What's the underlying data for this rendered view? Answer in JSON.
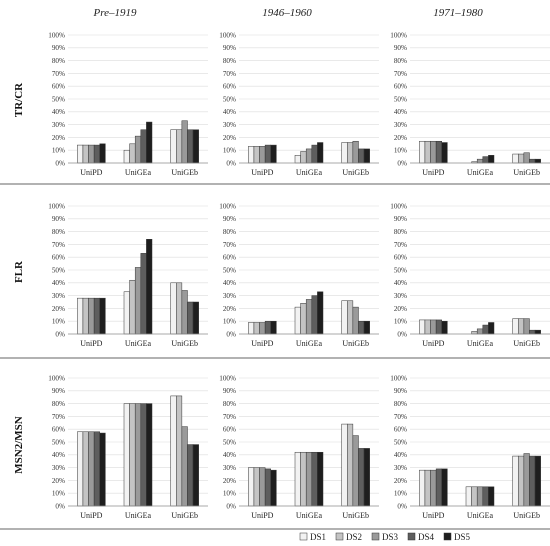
{
  "chart_data": {
    "type": "bar",
    "column_titles": [
      "Pre–1919",
      "1946–1960",
      "1971–1980"
    ],
    "row_titles": [
      "TR/CR",
      "FLR",
      "MSN2/MSN"
    ],
    "categories": [
      "UniPD",
      "UniGEa",
      "UniGEb"
    ],
    "series_names": [
      "DS1",
      "DS2",
      "DS3",
      "DS4",
      "DS5"
    ],
    "series_colors": [
      "#f2f2f2",
      "#c4c4c4",
      "#9a9a9a",
      "#5e5e5e",
      "#1e1e1e"
    ],
    "ylim": [
      0,
      100
    ],
    "yticks": [
      "0%",
      "10%",
      "20%",
      "30%",
      "40%",
      "50%",
      "60%",
      "70%",
      "80%",
      "90%",
      "100%"
    ],
    "legend_position": "bottom-right",
    "grid": true,
    "panels": [
      {
        "row": 0,
        "col": 0,
        "values": [
          [
            14,
            14,
            14,
            14,
            15
          ],
          [
            10,
            15,
            21,
            26,
            32
          ],
          [
            26,
            26,
            33,
            26,
            26
          ]
        ]
      },
      {
        "row": 0,
        "col": 1,
        "values": [
          [
            13,
            13,
            13,
            14,
            14
          ],
          [
            6,
            9,
            11,
            14,
            16
          ],
          [
            16,
            16,
            17,
            11,
            11
          ]
        ]
      },
      {
        "row": 0,
        "col": 2,
        "values": [
          [
            17,
            17,
            17,
            17,
            16
          ],
          [
            0,
            1,
            3,
            5,
            6
          ],
          [
            7,
            7,
            8,
            3,
            3
          ]
        ]
      },
      {
        "row": 1,
        "col": 0,
        "values": [
          [
            28,
            28,
            28,
            28,
            28
          ],
          [
            33,
            42,
            52,
            63,
            74
          ],
          [
            40,
            40,
            34,
            25,
            25
          ]
        ]
      },
      {
        "row": 1,
        "col": 1,
        "values": [
          [
            9,
            9,
            9,
            10,
            10
          ],
          [
            21,
            24,
            27,
            30,
            33
          ],
          [
            26,
            26,
            21,
            10,
            10
          ]
        ]
      },
      {
        "row": 1,
        "col": 2,
        "values": [
          [
            11,
            11,
            11,
            11,
            10
          ],
          [
            0,
            2,
            4,
            7,
            9
          ],
          [
            12,
            12,
            12,
            3,
            3
          ]
        ]
      },
      {
        "row": 2,
        "col": 0,
        "values": [
          [
            58,
            58,
            58,
            58,
            57
          ],
          [
            80,
            80,
            80,
            80,
            80
          ],
          [
            86,
            86,
            62,
            48,
            48
          ]
        ]
      },
      {
        "row": 2,
        "col": 1,
        "values": [
          [
            30,
            30,
            30,
            29,
            28
          ],
          [
            42,
            42,
            42,
            42,
            42
          ],
          [
            64,
            64,
            55,
            45,
            45
          ]
        ]
      },
      {
        "row": 2,
        "col": 2,
        "values": [
          [
            28,
            28,
            28,
            29,
            29
          ],
          [
            15,
            15,
            15,
            15,
            15
          ],
          [
            39,
            39,
            41,
            39,
            39
          ]
        ]
      }
    ]
  }
}
